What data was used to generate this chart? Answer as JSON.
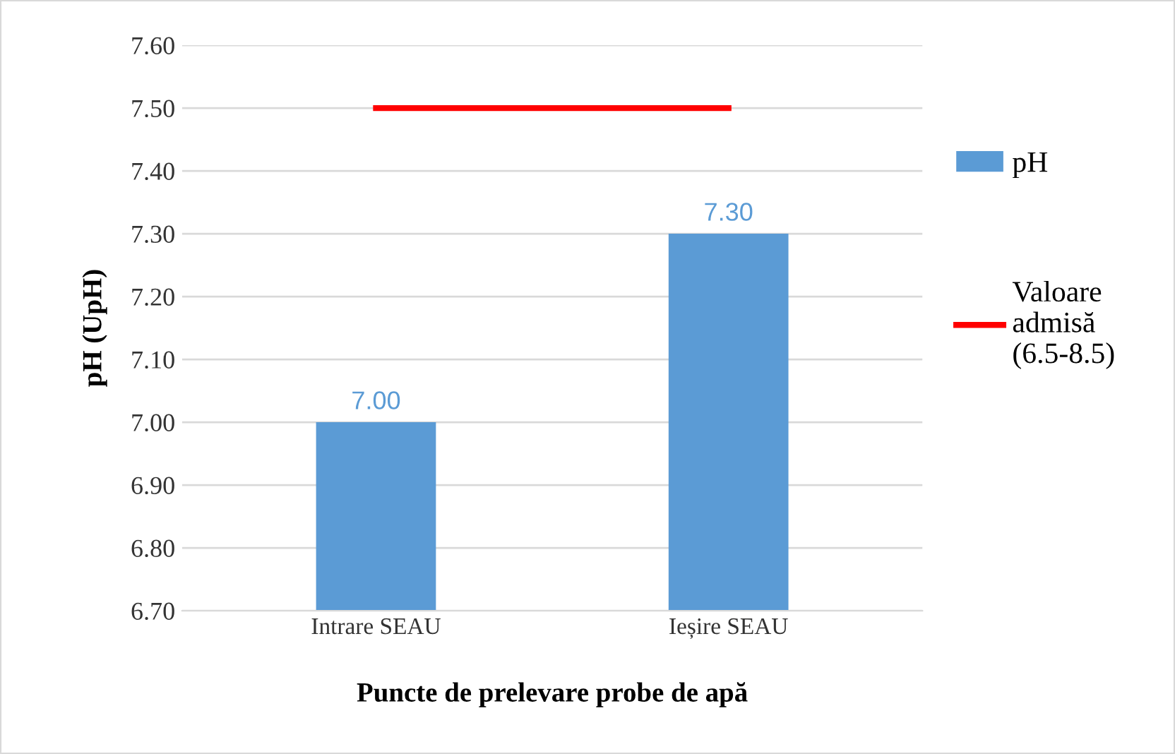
{
  "chart_data": {
    "type": "bar",
    "xlabel": "Puncte de prelevare probe de apă",
    "ylabel": "pH (UpH)",
    "categories": [
      "Intrare SEAU",
      "Ieșire SEAU"
    ],
    "series": [
      {
        "name": "pH",
        "color": "#5b9bd5",
        "values": [
          7.0,
          7.3
        ],
        "value_labels": [
          "7.00",
          "7.30"
        ]
      },
      {
        "name": "Valoare\nadmisă\n(6.5-8.5)",
        "type": "line",
        "color": "#ff0000",
        "values": [
          7.5,
          7.5
        ],
        "marker": "none",
        "line_style": "solid"
      }
    ],
    "ylim": [
      6.7,
      7.6
    ],
    "yticks": [
      {
        "value": 6.7,
        "label": "6.70"
      },
      {
        "value": 6.8,
        "label": "6.80"
      },
      {
        "value": 6.9,
        "label": "6.90"
      },
      {
        "value": 7.0,
        "label": "7.00"
      },
      {
        "value": 7.1,
        "label": "7.10"
      },
      {
        "value": 7.2,
        "label": "7.20"
      },
      {
        "value": 7.3,
        "label": "7.30"
      },
      {
        "value": 7.4,
        "label": "7.40"
      },
      {
        "value": 7.5,
        "label": "7.50"
      },
      {
        "value": 7.6,
        "label": "7.60"
      }
    ],
    "grid": "y",
    "legend": "right"
  }
}
